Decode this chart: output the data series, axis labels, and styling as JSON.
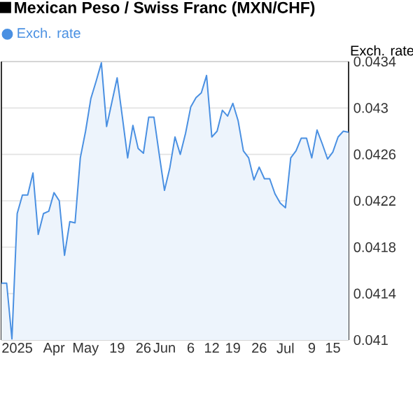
{
  "chart_data": {
    "type": "area",
    "title": "Mexican Peso / Swiss Franc (MXN/CHF)",
    "ylabel": "Exch. rate",
    "categories": [
      null,
      null,
      null,
      "2025",
      null,
      null,
      null,
      null,
      null,
      null,
      "Apr",
      null,
      null,
      null,
      null,
      null,
      "May",
      null,
      null,
      null,
      null,
      null,
      "19",
      null,
      null,
      null,
      null,
      "26",
      null,
      null,
      null,
      "Jun",
      null,
      null,
      null,
      null,
      "6",
      null,
      null,
      null,
      "12",
      null,
      null,
      null,
      "19",
      null,
      null,
      null,
      null,
      "26",
      null,
      null,
      null,
      null,
      "Jul",
      null,
      null,
      null,
      null,
      "9",
      null,
      null,
      null,
      "15",
      null,
      null,
      null
    ],
    "series": [
      {
        "name": "Exch. rate",
        "color": "#4a90e2",
        "values": [
          0.04149,
          0.04149,
          0.04101,
          0.04209,
          0.04225,
          0.04225,
          0.04244,
          0.04191,
          0.04209,
          0.04211,
          0.04227,
          0.0422,
          0.04173,
          0.04202,
          0.04201,
          0.04257,
          0.0428,
          0.04308,
          0.04323,
          0.04339,
          0.04284,
          0.04305,
          0.04326,
          0.04292,
          0.04257,
          0.04285,
          0.04265,
          0.04261,
          0.04292,
          0.04292,
          0.0426,
          0.04229,
          0.04248,
          0.04275,
          0.0426,
          0.04278,
          0.04301,
          0.04309,
          0.04313,
          0.04328,
          0.04275,
          0.0428,
          0.04298,
          0.04293,
          0.04304,
          0.04289,
          0.04263,
          0.04257,
          0.04238,
          0.04249,
          0.04239,
          0.04239,
          0.04226,
          0.04218,
          0.04214,
          0.04257,
          0.04263,
          0.04274,
          0.04274,
          0.04257,
          0.04281,
          0.04269,
          0.04256,
          0.04262,
          0.04275,
          0.0428,
          0.04279
        ]
      }
    ],
    "ylim": [
      0.041,
      0.0434
    ],
    "yticks": [
      0.041,
      0.0414,
      0.0418,
      0.0422,
      0.0426,
      0.043,
      0.0434
    ],
    "grid": "y",
    "legend": "top left",
    "marker": "none",
    "line_style": "solid"
  }
}
